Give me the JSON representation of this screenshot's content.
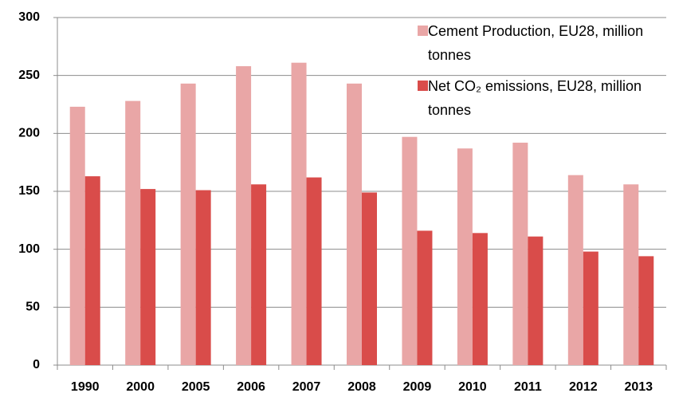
{
  "chart_data": {
    "type": "bar",
    "categories": [
      "1990",
      "2000",
      "2005",
      "2006",
      "2007",
      "2008",
      "2009",
      "2010",
      "2011",
      "2012",
      "2013"
    ],
    "series": [
      {
        "name": "Cement Production, EU28, million tonnes",
        "color": "#e9a6a6",
        "values": [
          223,
          228,
          243,
          258,
          261,
          243,
          197,
          187,
          192,
          164,
          156
        ]
      },
      {
        "name": "Net CO₂ emissions, EU28, million tonnes",
        "color": "#d94c4a",
        "values": [
          163,
          152,
          151,
          156,
          162,
          149,
          116,
          114,
          111,
          98,
          94
        ]
      }
    ],
    "ylim": [
      0,
      300
    ],
    "yticks": [
      0,
      50,
      100,
      150,
      200,
      250,
      300
    ],
    "grid": true,
    "legend": "top-right"
  }
}
